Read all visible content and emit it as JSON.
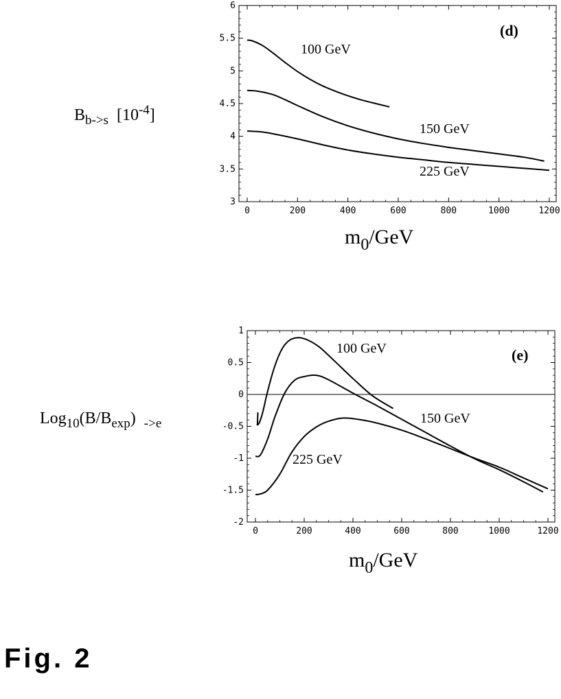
{
  "figure_label": "Fig. 2",
  "chart_data": [
    {
      "type": "line",
      "panel_label": "(d)",
      "ylabel": {
        "base": "B",
        "sub": "b->s",
        "scale_base": "[10",
        "scale_exp": "-4",
        "scale_end": "]"
      },
      "xlabel": {
        "base": "m",
        "sub": "0",
        "rest": "/GeV"
      },
      "xlim": [
        0,
        1200
      ],
      "ylim": [
        3,
        6
      ],
      "xticks": [
        0,
        200,
        400,
        600,
        800,
        1000,
        1200
      ],
      "yticks": [
        3,
        3.5,
        4,
        4.5,
        5,
        5.5,
        6
      ],
      "xtick_labels": [
        "0",
        "200",
        "400",
        "600",
        "800",
        "1000",
        "1200"
      ],
      "ytick_labels": [
        "3",
        "3.5",
        "4",
        "4.5",
        "5",
        "5.5",
        "6"
      ],
      "series": [
        {
          "name": "100 GeV",
          "x": [
            0,
            20,
            60,
            100,
            150,
            200,
            250,
            300,
            350,
            400,
            450,
            500,
            565
          ],
          "y": [
            5.47,
            5.46,
            5.39,
            5.28,
            5.13,
            4.99,
            4.87,
            4.77,
            4.69,
            4.62,
            4.56,
            4.51,
            4.45
          ]
        },
        {
          "name": "150 GeV",
          "x": [
            0,
            40,
            100,
            150,
            200,
            300,
            400,
            500,
            600,
            700,
            800,
            900,
            1000,
            1100,
            1180
          ],
          "y": [
            4.7,
            4.69,
            4.64,
            4.56,
            4.47,
            4.3,
            4.16,
            4.05,
            3.96,
            3.89,
            3.83,
            3.78,
            3.73,
            3.68,
            3.62
          ]
        },
        {
          "name": "225 GeV",
          "x": [
            0,
            50,
            100,
            200,
            300,
            400,
            500,
            600,
            700,
            800,
            900,
            1000,
            1100,
            1200
          ],
          "y": [
            4.08,
            4.07,
            4.04,
            3.96,
            3.87,
            3.79,
            3.73,
            3.68,
            3.64,
            3.6,
            3.57,
            3.54,
            3.51,
            3.48
          ]
        }
      ],
      "annotations": [
        "100 GeV",
        "150 GeV",
        "225 GeV"
      ]
    },
    {
      "type": "line",
      "panel_label": "(e)",
      "ylabel": {
        "pre": "Log",
        "sub1": "10",
        "mid": "(B/B",
        "sub2": "exp",
        "end": ")",
        "sub3": "->e"
      },
      "xlabel": {
        "base": "m",
        "sub": "0",
        "rest": "/GeV"
      },
      "xlim": [
        0,
        1200
      ],
      "ylim": [
        -2,
        1
      ],
      "xticks": [
        0,
        200,
        400,
        600,
        800,
        1000,
        1200
      ],
      "yticks": [
        -2,
        -1.5,
        -1,
        -0.5,
        0,
        0.5,
        1
      ],
      "xtick_labels": [
        "0",
        "200",
        "400",
        "600",
        "800",
        "1000",
        "1200"
      ],
      "ytick_labels": [
        "-2",
        "-1.5",
        "-1",
        "-0.5",
        "0",
        "0.5",
        "1"
      ],
      "reference_line_y": 0,
      "series": [
        {
          "name": "100 GeV",
          "x": [
            5,
            15,
            30,
            50,
            80,
            110,
            140,
            175,
            210,
            260,
            320,
            400,
            480,
            565
          ],
          "y": [
            -0.48,
            -0.45,
            -0.28,
            0.05,
            0.45,
            0.72,
            0.85,
            0.89,
            0.86,
            0.75,
            0.54,
            0.25,
            -0.02,
            -0.22
          ]
        },
        {
          "name": "150 GeV",
          "x": [
            0,
            20,
            50,
            80,
            120,
            160,
            200,
            250,
            300,
            400,
            500,
            600,
            700,
            800,
            900,
            1000,
            1100,
            1180
          ],
          "y": [
            -0.97,
            -0.95,
            -0.7,
            -0.35,
            0.02,
            0.22,
            0.28,
            0.3,
            0.23,
            0.02,
            -0.18,
            -0.39,
            -0.6,
            -0.81,
            -1.01,
            -1.18,
            -1.37,
            -1.53
          ]
        },
        {
          "name": "225 GeV",
          "x": [
            0,
            20,
            50,
            100,
            150,
            200,
            250,
            300,
            360,
            420,
            500,
            600,
            700,
            800,
            900,
            1000,
            1100,
            1200
          ],
          "y": [
            -1.57,
            -1.56,
            -1.5,
            -1.25,
            -0.9,
            -0.66,
            -0.51,
            -0.42,
            -0.37,
            -0.39,
            -0.45,
            -0.56,
            -0.7,
            -0.85,
            -1.0,
            -1.14,
            -1.31,
            -1.48
          ]
        }
      ],
      "extra_segment": {
        "x": [
          8,
          10
        ],
        "y": [
          -0.48,
          -0.28
        ]
      },
      "annotations": [
        "100 GeV",
        "150 GeV",
        "225 GeV"
      ]
    }
  ]
}
